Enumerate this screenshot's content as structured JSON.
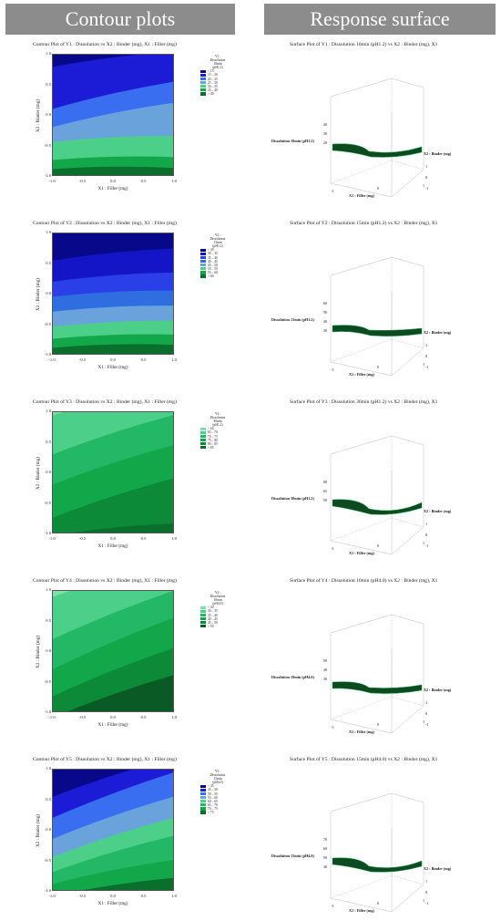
{
  "headers": {
    "left": "Contour plots",
    "right": "Response surface"
  },
  "colors": {
    "header_bg": "#8c8c8c",
    "header_text": "#ffffff",
    "surface": "#0d4a1f",
    "surface_edge": "#22aa55"
  },
  "x_ticks": [
    "-1.0",
    "-0.5",
    "0.0",
    "0.5",
    "1.0"
  ],
  "y_ticks": [
    "1.0",
    "0.5",
    "0.0",
    "-0.5",
    "-1.0"
  ],
  "rows": [
    {
      "contour_title": "Contour Plot of Y1 : Dissolution vs X2 : Binder (mg), X1 : Filler (mg)",
      "surface_title": "Surface Plot of Y1 : Dissolution 10min (pH1.2) vs X2 : Binder (mg), X1",
      "x_label": "X1 : Filler (mg)",
      "y_label": "X2 : Binder (mg)",
      "legend_header": [
        "Y1 :",
        "Dissolution",
        "10min",
        "(pH1.2)"
      ],
      "legend": [
        {
          "label": "< 15",
          "color": "#08088a"
        },
        {
          "label": "15 – 20",
          "color": "#1c1cd6"
        },
        {
          "label": "20 – 25",
          "color": "#3a6ef0"
        },
        {
          "label": "25 – 30",
          "color": "#6aa3dc"
        },
        {
          "label": "30 – 35",
          "color": "#4ccf88"
        },
        {
          "label": "35 – 40",
          "color": "#12a84a"
        },
        {
          "label": "> 40",
          "color": "#0a6e2c"
        }
      ],
      "surface": {
        "z_label": "Dissolution 10min (pH1.2)",
        "y_label": "X2 : Binder (mg)",
        "x_label": "X1 : Filler (mg)",
        "z_ticks": [
          "40",
          "30",
          "20"
        ],
        "y_ticks": [
          "1",
          "0",
          "-1"
        ],
        "x_ticks": [
          "-1",
          "0",
          "1"
        ]
      }
    },
    {
      "contour_title": "Contour Plot of Y2 : Dissolution vs X2 : Binder (mg), X1 : Filler (mg)",
      "surface_title": "Surface Plot of Y2 : Dissolution 15min (pH1.2) vs X2 : Binder (mg), X1",
      "x_label": "X1 : Filler (mg)",
      "y_label": "X2 : Binder (mg)",
      "legend_header": [
        "Y2 :",
        "Dissolution",
        "15min",
        "(pH1.2)"
      ],
      "legend": [
        {
          "label": "< 30",
          "color": "#08088a"
        },
        {
          "label": "30 – 35",
          "color": "#1515c8"
        },
        {
          "label": "35 – 40",
          "color": "#2a3fe8"
        },
        {
          "label": "40 – 45",
          "color": "#2f6ee0"
        },
        {
          "label": "45 – 50",
          "color": "#6aa3dc"
        },
        {
          "label": "50 – 55",
          "color": "#4ccf88"
        },
        {
          "label": "55 – 60",
          "color": "#12a84a"
        },
        {
          "label": "> 60",
          "color": "#0a6e2c"
        }
      ],
      "surface": {
        "z_label": "Dissolution 15min (pH1.2)",
        "y_label": "X2 : Binder (mg)",
        "x_label": "X1 : Filler (mg)",
        "z_ticks": [
          "60",
          "50",
          "40",
          "30"
        ],
        "y_ticks": [
          "1",
          "0",
          "-1"
        ],
        "x_ticks": [
          "-1",
          "0",
          "1"
        ]
      }
    },
    {
      "contour_title": "Contour Plot of Y3 : Dissolution vs X2 : Binder (mg), X1 : Filler (mg)",
      "surface_title": "Surface Plot of Y3 : Dissolution 30min (pH1.2) vs X2 : Binder (mg), X1",
      "x_label": "X1 : Filler (mg)",
      "y_label": "X2 : Binder (mg)",
      "legend_header": [
        "Y3 :",
        "Dissolution",
        "30min",
        "(pH1.2)"
      ],
      "legend": [
        {
          "label": "< 65",
          "color": "#7fe0a8"
        },
        {
          "label": "65 – 70",
          "color": "#4ccf88"
        },
        {
          "label": "70 – 75",
          "color": "#22b866"
        },
        {
          "label": "75 – 80",
          "color": "#12a84a"
        },
        {
          "label": "80 – 85",
          "color": "#0d8a38"
        },
        {
          "label": "> 85",
          "color": "#0a6e2c"
        }
      ],
      "surface": {
        "z_label": "Dissolution 30min (pH1.2)",
        "y_label": "X2 : Binder (mg)",
        "x_label": "X1 : Filler (mg)",
        "z_ticks": [
          "80",
          "65",
          "50"
        ],
        "y_ticks": [
          "1",
          "0",
          "-1"
        ],
        "x_ticks": [
          "-1",
          "0",
          "1"
        ]
      }
    },
    {
      "contour_title": "Contour Plot of Y4 : Dissolution vs X2 : Binder (mg), X1 : Filler (mg)",
      "surface_title": "Surface Plot of Y4 : Dissolution 10min (pH4.0) vs X2 : Binder (mg), X1",
      "x_label": "X1 : Filler (mg)",
      "y_label": "X2 : Binder (mg)",
      "legend_header": [
        "Y4 :",
        "Dissolution",
        "10min",
        "(pH4.0)"
      ],
      "legend": [
        {
          "label": "< 30",
          "color": "#7fe0a8"
        },
        {
          "label": "30 – 35",
          "color": "#4ccf88"
        },
        {
          "label": "35 – 40",
          "color": "#22b866"
        },
        {
          "label": "40 – 45",
          "color": "#12a84a"
        },
        {
          "label": "45 – 50",
          "color": "#0d8a38"
        },
        {
          "label": "> 50",
          "color": "#0a5a26"
        }
      ],
      "surface": {
        "z_label": "Dissolution 10min (pH4.0)",
        "y_label": "X2 : Binder (mg)",
        "x_label": "X1 : Filler (mg)",
        "z_ticks": [
          "50",
          "40",
          "30"
        ],
        "y_ticks": [
          "1",
          "0",
          "-1"
        ],
        "x_ticks": [
          "-1",
          "0",
          "1"
        ]
      }
    },
    {
      "contour_title": "Contour Plot of Y5 : Dissolution vs X2 : Binder (mg), X1 : Filler (mg)",
      "surface_title": "Surface Plot of Y5 : Dissolution 15min (pH4.0) vs X2 : Binder (mg), X1",
      "x_label": "X1 : Filler (mg)",
      "y_label": "X2 : Binder (mg)",
      "legend_header": [
        "Y5 :",
        "Dissolution",
        "15min",
        "(pH4.0)"
      ],
      "legend": [
        {
          "label": "< 45",
          "color": "#08088a"
        },
        {
          "label": "45 – 50",
          "color": "#1c1cd6"
        },
        {
          "label": "50 – 55",
          "color": "#3a6ef0"
        },
        {
          "label": "55 – 60",
          "color": "#6aa3dc"
        },
        {
          "label": "60 – 65",
          "color": "#4ccf88"
        },
        {
          "label": "65 – 70",
          "color": "#22b866"
        },
        {
          "label": "70 – 75",
          "color": "#12a84a"
        },
        {
          "label": "> 75",
          "color": "#0a6e2c"
        }
      ],
      "surface": {
        "z_label": "Dissolution 15min (pH4.0)",
        "y_label": "X2 : Binder (mg)",
        "x_label": "X1 : Filler (mg)",
        "z_ticks": [
          "70",
          "60",
          "50",
          "40"
        ],
        "y_ticks": [
          "1",
          "0",
          "-1"
        ],
        "x_ticks": [
          "-1",
          "0",
          "1"
        ]
      }
    }
  ],
  "chart_data": [
    {
      "type": "heatmap",
      "title": "Contour Plot of Y1 : Dissolution vs X2 : Binder (mg), X1 : Filler (mg)",
      "xlabel": "X1 : Filler (mg)",
      "ylabel": "X2 : Binder (mg)",
      "xlim": [
        -1,
        1
      ],
      "ylim": [
        -1,
        1
      ],
      "levels": [
        "< 15",
        "15 – 20",
        "20 – 25",
        "25 – 30",
        "30 – 35",
        "35 – 40",
        "> 40"
      ],
      "boundaries": [
        [
          0.8,
          1.05
        ],
        [
          0.1,
          0.55
        ],
        [
          -0.2,
          0.2
        ],
        [
          -0.45,
          -0.35
        ],
        [
          -0.75,
          -0.7
        ],
        [
          -0.9,
          -0.88
        ]
      ]
    },
    {
      "type": "heatmap",
      "title": "Contour Plot of Y2 : Dissolution vs X2 : Binder (mg), X1 : Filler (mg)",
      "xlabel": "X1 : Filler (mg)",
      "ylabel": "X2 : Binder (mg)",
      "xlim": [
        -1,
        1
      ],
      "ylim": [
        -1,
        1
      ],
      "levels": [
        "< 30",
        "30 – 35",
        "35 – 40",
        "40 – 45",
        "45 – 50",
        "50 – 55",
        "55 – 60",
        "> 60"
      ],
      "boundaries": [
        [
          0.55,
          0.75
        ],
        [
          0.2,
          0.35
        ],
        [
          -0.05,
          0.05
        ],
        [
          -0.3,
          -0.2
        ],
        [
          -0.55,
          -0.45
        ],
        [
          -0.75,
          -0.68
        ],
        [
          -0.9,
          -0.85
        ]
      ]
    },
    {
      "type": "heatmap",
      "title": "Contour Plot of Y3 : Dissolution vs X2 : Binder (mg), X1 : Filler (mg)",
      "xlabel": "X1 : Filler (mg)",
      "ylabel": "X2 : Binder (mg)",
      "xlim": [
        -1,
        1
      ],
      "ylim": [
        -1,
        1
      ],
      "levels": [
        "< 65",
        "65 – 70",
        "70 – 75",
        "75 – 80",
        "80 – 85",
        "> 85"
      ],
      "boundaries": [
        [
          0.95,
          1.4
        ],
        [
          0.3,
          0.95
        ],
        [
          -0.2,
          0.45
        ],
        [
          -0.75,
          -0.1
        ],
        [
          -1.05,
          -0.85
        ]
      ]
    },
    {
      "type": "heatmap",
      "title": "Contour Plot of Y4 : Dissolution vs X2 : Binder (mg), X1 : Filler (mg)",
      "xlabel": "X1 : Filler (mg)",
      "ylabel": "X2 : Binder (mg)",
      "xlim": [
        -1,
        1
      ],
      "ylim": [
        -1,
        1
      ],
      "levels": [
        "< 30",
        "30 – 35",
        "35 – 40",
        "40 – 45",
        "45 – 50",
        "> 50"
      ],
      "boundaries": [
        [
          0.9,
          1.5
        ],
        [
          0.2,
          1.0
        ],
        [
          -0.3,
          0.55
        ],
        [
          -0.75,
          0.05
        ],
        [
          -1.1,
          -0.4
        ]
      ]
    },
    {
      "type": "heatmap",
      "title": "Contour Plot of Y5 : Dissolution vs X2 : Binder (mg), X1 : Filler (mg)",
      "xlabel": "X1 : Filler (mg)",
      "ylabel": "X2 : Binder (mg)",
      "xlim": [
        -1,
        1
      ],
      "ylim": [
        -1,
        1
      ],
      "levels": [
        "< 45",
        "45 – 50",
        "50 – 55",
        "55 – 60",
        "60 – 65",
        "65 – 70",
        "70 – 75",
        "> 75"
      ],
      "boundaries": [
        [
          0.55,
          1.2
        ],
        [
          0.2,
          0.95
        ],
        [
          -0.15,
          0.55
        ],
        [
          -0.45,
          0.2
        ],
        [
          -0.7,
          -0.1
        ],
        [
          -0.9,
          -0.5
        ],
        [
          -1.1,
          -0.8
        ]
      ]
    }
  ]
}
